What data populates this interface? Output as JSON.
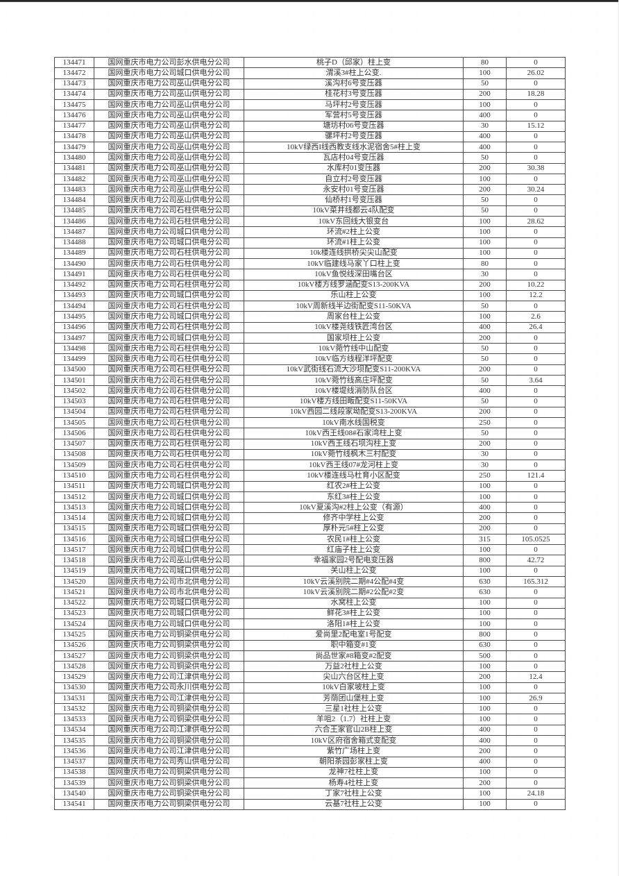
{
  "colors": {
    "page_background": "#ffffff",
    "table_border": "#4d4d4d",
    "text": "#333333",
    "top_edge_bar": "#1f1f1f"
  },
  "table": {
    "rows": [
      [
        "134471",
        "国网重庆市电力公司彭水供电分公司",
        "桃子D（邱家）柱上变",
        "80",
        "0"
      ],
      [
        "134472",
        "国网重庆市电力公司城口供电分公司",
        "渭溪3#柱上公变.",
        "100",
        "26.02"
      ],
      [
        "134473",
        "国网重庆市电力公司巫山供电分公司",
        "溪沟村6号变压器",
        "50",
        "0"
      ],
      [
        "134474",
        "国网重庆市电力公司巫山供电分公司",
        "桂花村3号变压器",
        "200",
        "18.28"
      ],
      [
        "134475",
        "国网重庆市电力公司巫山供电分公司",
        "马坪村2号变压器",
        "100",
        "0"
      ],
      [
        "134476",
        "国网重庆市电力公司巫山供电分公司",
        "军营村5号变压器",
        "400",
        "0"
      ],
      [
        "134477",
        "国网重庆市电力公司巫山供电分公司",
        "塘坊村06号变压器",
        "30",
        "15.12"
      ],
      [
        "134478",
        "国网重庆市电力公司巫山供电分公司",
        "骡坪村2号变压器",
        "400",
        "0"
      ],
      [
        "134479",
        "国网重庆市电力公司巫山供电分公司",
        "10kV绿西I线西教支线水泥宿舍5#柱上变",
        "400",
        "0"
      ],
      [
        "134480",
        "国网重庆市电力公司巫山供电分公司",
        "瓦店村04号变压器",
        "50",
        "0"
      ],
      [
        "134481",
        "国网重庆市电力公司巫山供电分公司",
        "水库村01变压器",
        "200",
        "30.38"
      ],
      [
        "134482",
        "国网重庆市电力公司巫山供电分公司",
        "自立村2号变压器",
        "100",
        "0"
      ],
      [
        "134483",
        "国网重庆市电力公司巫山供电分公司",
        "永安村01号变压器",
        "200",
        "30.24"
      ],
      [
        "134484",
        "国网重庆市电力公司巫山供电分公司",
        "仙桥村1号变压器",
        "50",
        "0"
      ],
      [
        "134485",
        "国网重庆市电力公司石柱供电分公司",
        "10kV菜井线都云4队配变",
        "50",
        "0"
      ],
      [
        "134486",
        "国网重庆市电力公司石柱供电分公司",
        "10kV东回线大银变台",
        "100",
        "28.62"
      ],
      [
        "134487",
        "国网重庆市电力公司城口供电分公司",
        "环流#2柱上公变",
        "100",
        "0"
      ],
      [
        "134488",
        "国网重庆市电力公司城口供电分公司",
        "环流#1柱上公变",
        "100",
        "0"
      ],
      [
        "134489",
        "国网重庆市电力公司石柱供电分公司",
        "10k楼连线拱桥尖尖山配变",
        "100",
        "0"
      ],
      [
        "134490",
        "国网重庆市电力公司石柱供电分公司",
        "10kV临建线马家丫口柱上变",
        "80",
        "0"
      ],
      [
        "134491",
        "国网重庆市电力公司石柱供电分公司",
        "10kV鱼悦线深田嘴台区",
        "30",
        "0"
      ],
      [
        "134492",
        "国网重庆市电力公司石柱供电分公司",
        "10kV楼方线罗涵配变S13-200KVA",
        "200",
        "10.22"
      ],
      [
        "134493",
        "国网重庆市电力公司城口供电分公司",
        "乐山柱上公变",
        "100",
        "12.2"
      ],
      [
        "134494",
        "国网重庆市电力公司石柱供电分公司",
        "10kV周新线半边街配变S11-50KVA",
        "50",
        "0"
      ],
      [
        "134495",
        "国网重庆市电力公司城口供电分公司",
        "周家台柱上公变",
        "100",
        "2.6"
      ],
      [
        "134496",
        "国网重庆市电力公司石柱供电分公司",
        "10kV楼尧线铁匠湾台区",
        "400",
        "26.4"
      ],
      [
        "134497",
        "国网重庆市电力公司城口供电分公司",
        "国家坝柱上公变",
        "200",
        "0"
      ],
      [
        "134498",
        "国网重庆市电力公司石柱供电分公司",
        "10kV菀竹线中山配变",
        "50",
        "0"
      ],
      [
        "134499",
        "国网重庆市电力公司石柱供电分公司",
        "10kV临方线程洋坪配变",
        "50",
        "0"
      ],
      [
        "134500",
        "国网重庆市电力公司石柱供电分公司",
        "10kV武街线石流大沙坝配变S11-200KVA",
        "200",
        "0"
      ],
      [
        "134501",
        "国网重庆市电力公司石柱供电分公司",
        "10kV菀竹线高庄坪配变",
        "50",
        "3.64"
      ],
      [
        "134502",
        "国网重庆市电力公司石柱供电分公司",
        "10kV楼堤线消防队台区",
        "400",
        "0"
      ],
      [
        "134503",
        "国网重庆市电力公司石柱供电分公司",
        "10kV楼方线田畈配变S11-50KVA",
        "50",
        "0"
      ],
      [
        "134504",
        "国网重庆市电力公司石柱供电分公司",
        "10kV西园二线段家坳配变S13-200KVA",
        "200",
        "0"
      ],
      [
        "134505",
        "国网重庆市电力公司石柱供电分公司",
        "10kV南水线国税变",
        "250",
        "0"
      ],
      [
        "134506",
        "国网重庆市电力公司石柱供电分公司",
        "10kV西王线08#石家湾柱上变",
        "50",
        "0"
      ],
      [
        "134507",
        "国网重庆市电力公司石柱供电分公司",
        "10kV西王线石坝沟柱上变",
        "200",
        "0"
      ],
      [
        "134508",
        "国网重庆市电力公司石柱供电分公司",
        "10kV菀竹线枫木三村配变",
        "30",
        "0"
      ],
      [
        "134509",
        "国网重庆市电力公司石柱供电分公司",
        "10kV西王线07#龙河柱上变",
        "30",
        "0"
      ],
      [
        "134510",
        "国网重庆市电力公司石柱供电分公司",
        "10kV楼连线马杜育小区配变",
        "250",
        "121.4"
      ],
      [
        "134511",
        "国网重庆市电力公司城口供电分公司",
        "红农2#柱上公变",
        "100",
        "0"
      ],
      [
        "134512",
        "国网重庆市电力公司城口供电分公司",
        "东红3#柱上公变",
        "100",
        "0"
      ],
      [
        "134513",
        "国网重庆市电力公司城口供电分公司",
        "10kV夏溪沟#2柱上公变（有源）",
        "400",
        "0"
      ],
      [
        "134514",
        "国网重庆市电力公司城口供电分公司",
        "修齐中学柱上公变",
        "200",
        "0"
      ],
      [
        "134515",
        "国网重庆市电力公司城口供电分公司",
        "厚朴元5#柱上公变",
        "200",
        "0"
      ],
      [
        "134516",
        "国网重庆市电力公司城口供电分公司",
        "农民1#柱上公变",
        "315",
        "105.0525"
      ],
      [
        "134517",
        "国网重庆市电力公司城口供电分公司",
        "红庙子柱上公变",
        "100",
        "0"
      ],
      [
        "134518",
        "国网重庆市电力公司巫山供电分公司",
        "幸福家园2号配电变压器",
        "800",
        "42.72"
      ],
      [
        "134519",
        "国网重庆市电力公司城口供电分公司",
        "关山柱上公变",
        "100",
        "0"
      ],
      [
        "134520",
        "国网重庆市电力公司市北供电分公司",
        "10kV云溪别院二期#4公配#4变",
        "630",
        "165.312"
      ],
      [
        "134521",
        "国网重庆市电力公司市北供电分公司",
        "10kV云溪别院二期#2公配#2变",
        "630",
        "0"
      ],
      [
        "134522",
        "国网重庆市电力公司城口供电分公司",
        "水窝柱上公变",
        "100",
        "0"
      ],
      [
        "134523",
        "国网重庆市电力公司城口供电分公司",
        "鲜花3#柱上公变",
        "100",
        "0"
      ],
      [
        "134524",
        "国网重庆市电力公司城口供电分公司",
        "洛阳1#柱上公变",
        "100",
        "0"
      ],
      [
        "134525",
        "国网重庆市电力公司铜梁供电分公司",
        "爱尚里2配电室1号配变",
        "800",
        "0"
      ],
      [
        "134526",
        "国网重庆市电力公司铜梁供电分公司",
        "职中箱变#1变",
        "630",
        "0"
      ],
      [
        "134527",
        "国网重庆市电力公司铜梁供电分公司",
        "尚品世家#8箱变#2配变",
        "500",
        "0"
      ],
      [
        "134528",
        "国网重庆市电力公司铜梁供电分公司",
        "万益2社柱上公变",
        "100",
        "0"
      ],
      [
        "134529",
        "国网重庆市电力公司江津供电分公司",
        "尖山六台区柱上变",
        "200",
        "12.4"
      ],
      [
        "134530",
        "国网重庆市电力公司永川供电分公司",
        "10kV白家坡柱上变",
        "100",
        "0"
      ],
      [
        "134531",
        "国网重庆市电力公司江津供电分公司",
        "芳荫团山堡柱上变",
        "100",
        "26.9"
      ],
      [
        "134532",
        "国网重庆市电力公司铜梁供电分公司",
        "三星1社柱上公变",
        "100",
        "0"
      ],
      [
        "134533",
        "国网重庆市电力公司铜梁供电分公司",
        "羊咀2（1.7）社柱上变",
        "100",
        "0"
      ],
      [
        "134534",
        "国网重庆市电力公司江津供电分公司",
        "六合王家官山2B柱上变",
        "400",
        "0"
      ],
      [
        "134535",
        "国网重庆市电力公司铜梁供电分公司",
        "10kV区府宿舍箱式变配变",
        "400",
        "0"
      ],
      [
        "134536",
        "国网重庆市电力公司江津供电分公司",
        "紫竹广场柱上变",
        "200",
        "0"
      ],
      [
        "134537",
        "国网重庆市电力公司秀山供电分公司",
        "朝阳茶园彭家柱上变",
        "400",
        "0"
      ],
      [
        "134538",
        "国网重庆市电力公司铜梁供电分公司",
        "龙神7社柱上变",
        "100",
        "0"
      ],
      [
        "134539",
        "国网重庆市电力公司铜梁供电分公司",
        "杨寿4社柱上变",
        "200",
        "0"
      ],
      [
        "134540",
        "国网重庆市电力公司铜梁供电分公司",
        "丁家7社柱上公变",
        "100",
        "24.18"
      ],
      [
        "134541",
        "国网重庆市电力公司铜梁供电分公司",
        "云基7社柱上公变",
        "100",
        "0"
      ]
    ]
  }
}
